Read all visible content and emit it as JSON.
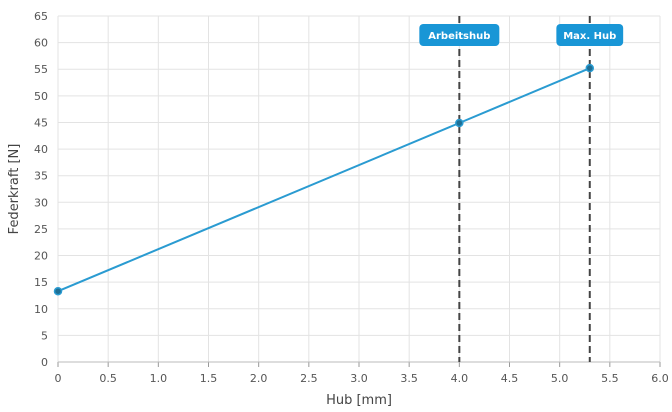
{
  "chart_data": {
    "type": "line",
    "xlabel": "Hub [mm]",
    "ylabel": "Federkraft [N]",
    "xlim": [
      0,
      6.0
    ],
    "ylim": [
      0,
      65
    ],
    "x_ticks": [
      "0",
      "0.5",
      "1.0",
      "1.5",
      "2.0",
      "2.5",
      "3.0",
      "3.5",
      "4.0",
      "4.5",
      "5.0",
      "5.5",
      "6.0"
    ],
    "y_ticks": [
      "0",
      "5",
      "10",
      "15",
      "20",
      "25",
      "30",
      "35",
      "40",
      "45",
      "50",
      "55",
      "60",
      "65"
    ],
    "grid": true,
    "series": [
      {
        "points": [
          {
            "x": 0,
            "y": 13.3
          },
          {
            "x": 4.0,
            "y": 44.9
          },
          {
            "x": 5.3,
            "y": 55.2
          }
        ]
      }
    ],
    "markers": [
      {
        "label": "Arbeitshub",
        "x": 4.0
      },
      {
        "label": "Max. Hub",
        "x": 5.3
      }
    ],
    "colors": {
      "line": "#2a9bd1",
      "point": "#1e6f95",
      "marker_badge": "#1996d6",
      "marker_line": "#444444",
      "grid": "#e3e3e3"
    }
  }
}
